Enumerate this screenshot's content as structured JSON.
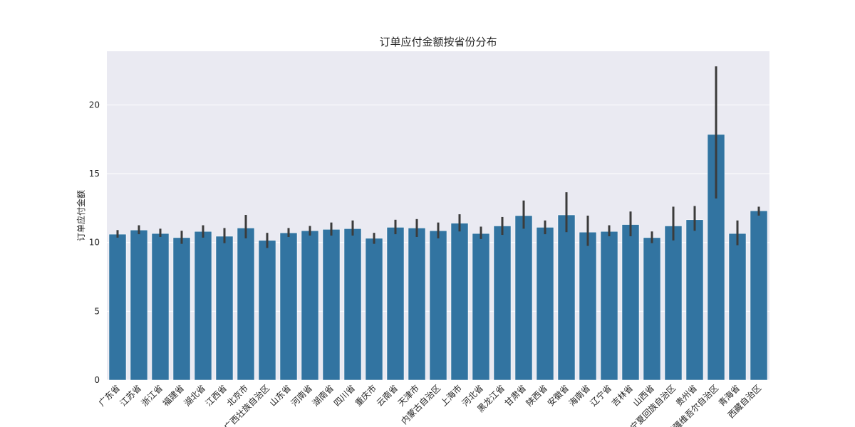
{
  "chart_data": {
    "type": "bar",
    "title": "订单应付金额按省份分布",
    "xlabel": "",
    "ylabel": "订单应付金额",
    "ylim": [
      0,
      23.9
    ],
    "yticks": [
      0,
      5,
      10,
      15,
      20
    ],
    "grid": true,
    "colors": {
      "bar": "#3274a1",
      "errorbar": "#3b3b3b",
      "plot_bg": "#eaeaf2",
      "grid": "#ffffff"
    },
    "categories": [
      "广东省",
      "江苏省",
      "浙江省",
      "福建省",
      "湖北省",
      "江西省",
      "北京市",
      "广西壮族自治区",
      "山东省",
      "河南省",
      "湖南省",
      "四川省",
      "重庆市",
      "云南省",
      "天津市",
      "内蒙古自治区",
      "上海市",
      "河北省",
      "黑龙江省",
      "甘肃省",
      "陕西省",
      "安徽省",
      "海南省",
      "辽宁省",
      "吉林省",
      "山西省",
      "宁夏回族自治区",
      "贵州省",
      "新疆维吾尔自治区",
      "青海省",
      "西藏自治区"
    ],
    "values": [
      10.6,
      10.9,
      10.65,
      10.35,
      10.8,
      10.45,
      11.05,
      10.15,
      10.7,
      10.85,
      10.95,
      11.0,
      10.3,
      11.1,
      11.05,
      10.85,
      11.4,
      10.65,
      11.2,
      11.95,
      11.1,
      12.0,
      10.75,
      10.8,
      11.3,
      10.35,
      11.2,
      11.65,
      17.85,
      10.65,
      12.3
    ],
    "ci_low": [
      10.35,
      10.6,
      10.4,
      9.9,
      10.35,
      9.95,
      10.3,
      9.6,
      10.4,
      10.5,
      10.5,
      10.5,
      9.9,
      10.6,
      10.4,
      10.3,
      10.8,
      10.25,
      10.55,
      11.0,
      10.6,
      10.75,
      9.75,
      10.45,
      10.45,
      9.95,
      10.15,
      10.85,
      13.2,
      9.8,
      11.95
    ],
    "ci_high": [
      10.9,
      11.25,
      11.0,
      10.85,
      11.25,
      11.05,
      12.0,
      10.7,
      11.05,
      11.2,
      11.45,
      11.6,
      10.7,
      11.65,
      11.7,
      11.45,
      12.05,
      11.15,
      11.85,
      13.05,
      11.6,
      13.65,
      11.95,
      11.25,
      12.25,
      10.8,
      12.6,
      12.65,
      22.8,
      11.6,
      12.6
    ]
  }
}
